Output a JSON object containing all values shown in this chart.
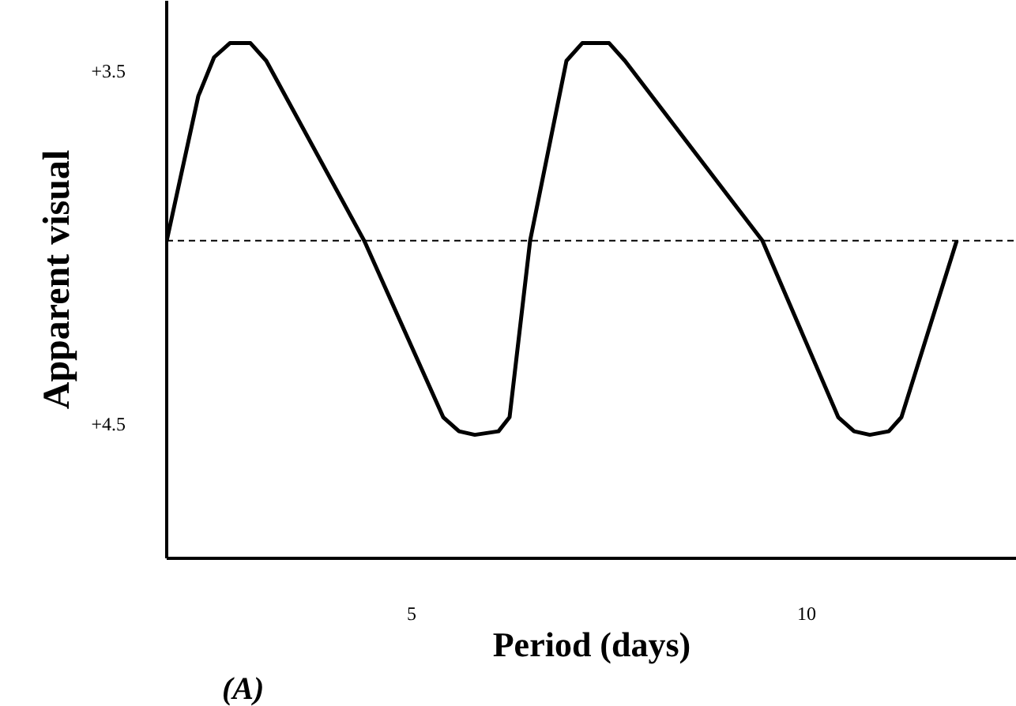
{
  "chart_data": {
    "type": "line",
    "xlabel": "Period (days)",
    "ylabel": "Apparent visual",
    "annotations": [
      "(A)"
    ],
    "x": [
      1.9,
      2.3,
      2.5,
      2.7,
      2.96,
      3.16,
      4.4,
      5.4,
      5.6,
      5.8,
      6.1,
      6.24,
      6.5,
      6.96,
      7.16,
      7.5,
      7.7,
      9.44,
      10.4,
      10.6,
      10.8,
      11.04,
      11.2,
      11.9
    ],
    "series": [
      {
        "color": "#000000",
        "values": [
          3.98,
          3.57,
          3.46,
          3.42,
          3.42,
          3.47,
          3.98,
          4.48,
          4.52,
          4.53,
          4.52,
          4.48,
          3.98,
          3.47,
          3.42,
          3.42,
          3.47,
          3.98,
          4.48,
          4.52,
          4.53,
          4.52,
          4.48,
          3.98
        ]
      }
    ],
    "xlim": [
      1.9,
      12.66
    ],
    "ylim": [
      4.88,
      3.3
    ],
    "xticks": [
      5,
      10
    ],
    "yticks": [
      {
        "value": 3.5,
        "label": "+3.5"
      },
      {
        "value": 4.5,
        "label": "+4.5"
      }
    ],
    "ref_lines": [
      {
        "axis": "y",
        "value": 3.98,
        "line_style": "dashed",
        "color": "#000000"
      }
    ],
    "grid": false,
    "marker": "none",
    "line_style": "solid"
  }
}
